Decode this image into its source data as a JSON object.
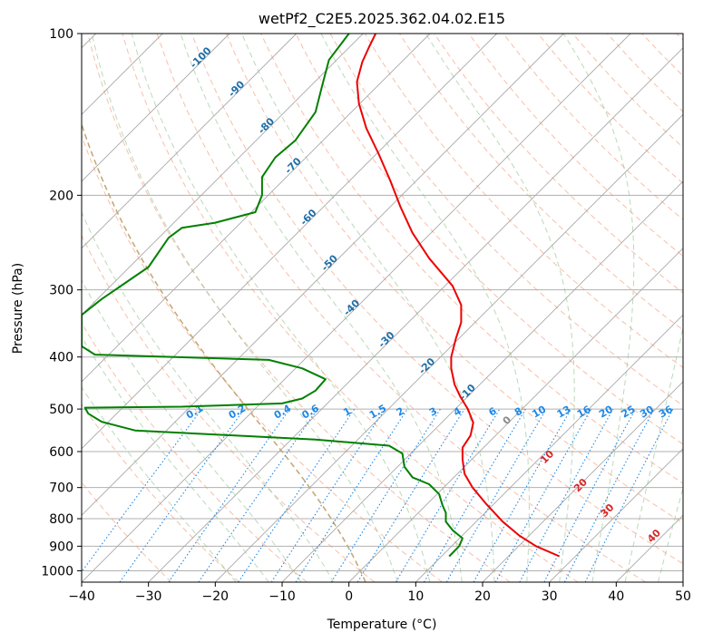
{
  "chart_data": {
    "type": "line",
    "title": "wetPf2_C2E5.2025.362.04.02.E15",
    "xlabel": "Temperature (°C)",
    "ylabel": "Pressure (hPa)",
    "xlim": [
      -40,
      50
    ],
    "ylim": [
      1050,
      100
    ],
    "y_scale": "log",
    "grid": true,
    "x_ticks": [
      -40,
      -30,
      -20,
      -10,
      0,
      10,
      20,
      30,
      40,
      50
    ],
    "x_tick_labels": [
      "−40",
      "−30",
      "−20",
      "−10",
      "0",
      "10",
      "20",
      "30",
      "40",
      "50"
    ],
    "y_ticks": [
      100,
      200,
      300,
      400,
      500,
      600,
      700,
      800,
      900,
      1000
    ],
    "y_tick_labels": [
      "100",
      "200",
      "300",
      "400",
      "500",
      "600",
      "700",
      "800",
      "900",
      "1000"
    ],
    "series": [
      {
        "kind": "temperature",
        "color": "#ee0000",
        "points": [
          [
            31.5,
            940
          ],
          [
            28,
            900
          ],
          [
            25.5,
            860
          ],
          [
            23,
            810
          ],
          [
            20.5,
            750
          ],
          [
            18.5,
            700
          ],
          [
            17.3,
            660
          ],
          [
            17,
            620
          ],
          [
            17,
            590
          ],
          [
            18.2,
            560
          ],
          [
            18.6,
            530
          ],
          [
            17.8,
            500
          ],
          [
            16.7,
            475
          ],
          [
            15.8,
            450
          ],
          [
            15.3,
            420
          ],
          [
            15.3,
            400
          ],
          [
            16,
            370
          ],
          [
            16.8,
            345
          ],
          [
            16.8,
            320
          ],
          [
            15.5,
            295
          ],
          [
            12,
            262
          ],
          [
            9.5,
            235
          ],
          [
            7.7,
            210
          ],
          [
            6.2,
            188
          ],
          [
            4.5,
            168
          ],
          [
            2.6,
            150
          ],
          [
            1.5,
            135
          ],
          [
            1.2,
            123
          ],
          [
            2,
            113
          ],
          [
            3,
            106
          ],
          [
            4,
            100
          ]
        ]
      },
      {
        "kind": "dewpoint",
        "color": "#008000",
        "points": [
          [
            15,
            940
          ],
          [
            16.5,
            900
          ],
          [
            17,
            870
          ],
          [
            15.5,
            840
          ],
          [
            14.5,
            810
          ],
          [
            14.5,
            780
          ],
          [
            14,
            755
          ],
          [
            13.5,
            720
          ],
          [
            12,
            690
          ],
          [
            9.5,
            670
          ],
          [
            8.3,
            640
          ],
          [
            8,
            605
          ],
          [
            6,
            585
          ],
          [
            -5,
            570
          ],
          [
            -32,
            548
          ],
          [
            -37,
            528
          ],
          [
            -39,
            510
          ],
          [
            -39.5,
            497
          ],
          [
            -25,
            495
          ],
          [
            -10,
            488
          ],
          [
            -7,
            478
          ],
          [
            -5,
            462
          ],
          [
            -3.5,
            440
          ],
          [
            -7,
            420
          ],
          [
            -12,
            405
          ],
          [
            -38,
            396
          ],
          [
            -40,
            382
          ],
          [
            -40,
            334
          ],
          [
            -37,
            312
          ],
          [
            -30,
            272
          ],
          [
            -27,
            240
          ],
          [
            -25,
            230
          ],
          [
            -20,
            225
          ],
          [
            -14,
            215
          ],
          [
            -13,
            200
          ],
          [
            -13,
            185
          ],
          [
            -11,
            170
          ],
          [
            -8,
            158
          ],
          [
            -5,
            140
          ],
          [
            -4,
            125
          ],
          [
            -3,
            112
          ],
          [
            0,
            100
          ]
        ]
      }
    ],
    "isotherm_labels": [
      "-100",
      "-90",
      "-80",
      "-70",
      "-60",
      "-50",
      "-40",
      "-30",
      "-20",
      "-10"
    ],
    "mixing_ratio_labels": [
      "0.1",
      "0.2",
      "0.4",
      "0.6",
      "1",
      "1.5",
      "2",
      "3",
      "4",
      "6",
      "8",
      "10",
      "13",
      "16",
      "20",
      "25",
      "30",
      "36"
    ],
    "moist_adiabat_labels": [
      "0",
      "10",
      "20",
      "30",
      "40"
    ],
    "colors": {
      "grid": "#b0b0b0",
      "isotherm": "#c9c9c9",
      "dry_adiabat": "#f08a64",
      "moist_adiabat": "#8cc08c",
      "mixing_ratio": "#1e88e5",
      "isotherm_label": "#1f6fa8",
      "moist_label_cold": "#888888",
      "moist_label_warm": "#d62728",
      "melting_adiabat": "#c2a06a"
    }
  }
}
